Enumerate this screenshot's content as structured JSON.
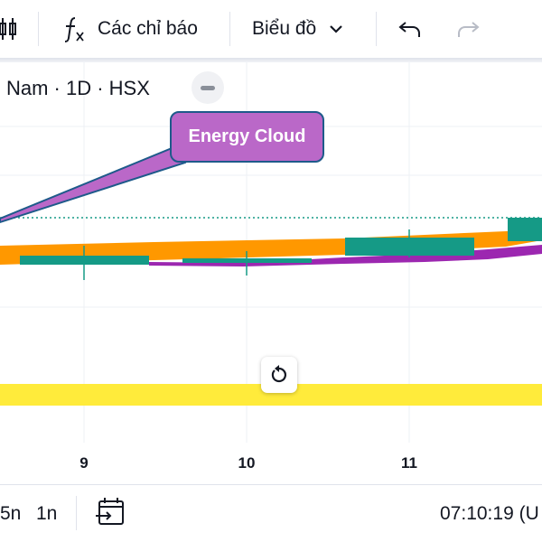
{
  "toolbar": {
    "indicators_label": "Các chỉ báo",
    "chart_type_label": "Biểu đồ",
    "icons": [
      "candlestick-icon",
      "function-icon",
      "chevron-down-icon",
      "undo-icon",
      "redo-icon"
    ]
  },
  "chart": {
    "symbol_label": "Nam · 1D · HSX",
    "callout_text": "Energy Cloud",
    "colors": {
      "up_candle": "#159a86",
      "orange_band": "#ff9800",
      "purple_line": "#9c27b0",
      "callout_fill": "#ba68c8",
      "callout_border": "#1e5a8a",
      "yellow_band": "#ffeb3b",
      "price_line": "#159a86"
    }
  },
  "chart_data": {
    "type": "candlestick",
    "categories": [
      "9",
      "10",
      "11"
    ],
    "annotation": "Energy Cloud"
  },
  "bottom_bar": {
    "range_5n": "5n",
    "range_1n": "1n",
    "clock": "07:10:19 (U"
  }
}
